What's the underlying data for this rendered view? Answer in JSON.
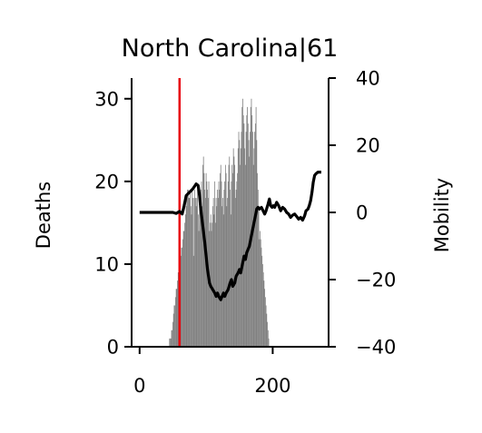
{
  "chart_data": {
    "type": "bar+line (dual axis)",
    "title": "North Carolina|61",
    "left_axis": {
      "label": "Deaths",
      "ylim": [
        0,
        32.5
      ],
      "ticks": [
        0,
        10,
        20,
        30
      ]
    },
    "right_axis": {
      "label": "Mobility",
      "ylim": [
        -40,
        40
      ],
      "ticks": [
        40,
        20,
        0,
        -20,
        -40
      ],
      "tick_labels": [
        "40",
        "20",
        "0",
        "−20",
        "−40"
      ]
    },
    "x_axis": {
      "xlim": [
        -12,
        284
      ],
      "ticks": [
        0,
        200
      ],
      "tick_labels": [
        "0",
        "200"
      ]
    },
    "vline": {
      "x": 60,
      "color": "#e8000b"
    },
    "colors": {
      "bars": "#808080",
      "line": "#000000",
      "axes": "#000000"
    },
    "deaths_series": {
      "name": "Deaths",
      "start_day": 42,
      "values": [
        0,
        0,
        0,
        1,
        1,
        1,
        2,
        2,
        3,
        4,
        5,
        5,
        6,
        7,
        7,
        8,
        9,
        9,
        10,
        11,
        11,
        12,
        12,
        13,
        14,
        14,
        15,
        16,
        17,
        18,
        19,
        19,
        18,
        18,
        19,
        17,
        16,
        19,
        18,
        11,
        18,
        19,
        18,
        17,
        18,
        19,
        16,
        14,
        17,
        18,
        19,
        20,
        17,
        22,
        23,
        21,
        19,
        18,
        21,
        20,
        19,
        18,
        20,
        14,
        15,
        16,
        14,
        15,
        17,
        18,
        16,
        20,
        15,
        18,
        17,
        19,
        18,
        20,
        19,
        21,
        22,
        20,
        17,
        18,
        16,
        19,
        20,
        22,
        21,
        17,
        18,
        20,
        22,
        23,
        19,
        16,
        20,
        22,
        21,
        24,
        23,
        22,
        18,
        19,
        20,
        21,
        24,
        26,
        25,
        22,
        24,
        26,
        29,
        30,
        28,
        27,
        24,
        22,
        26,
        28,
        29,
        27,
        25,
        23,
        26,
        29,
        30,
        28,
        26,
        22,
        24,
        26,
        27,
        29,
        25,
        21,
        19,
        17,
        13,
        14,
        13,
        12,
        11,
        10,
        9,
        8,
        7,
        6,
        5,
        4,
        3,
        2,
        1,
        0,
        0,
        0
      ]
    },
    "mobility_series": {
      "name": "Mobility",
      "points": [
        [
          0,
          0
        ],
        [
          10,
          0
        ],
        [
          20,
          0
        ],
        [
          30,
          0
        ],
        [
          40,
          0
        ],
        [
          50,
          0
        ],
        [
          55,
          -0.3
        ],
        [
          60,
          0.3
        ],
        [
          64,
          -0.5
        ],
        [
          67,
          2
        ],
        [
          70,
          5
        ],
        [
          75,
          6
        ],
        [
          80,
          7
        ],
        [
          85,
          8.5
        ],
        [
          88,
          8
        ],
        [
          90,
          5
        ],
        [
          92,
          1
        ],
        [
          95,
          -4
        ],
        [
          98,
          -9
        ],
        [
          100,
          -13
        ],
        [
          102,
          -17
        ],
        [
          105,
          -21
        ],
        [
          107,
          -22
        ],
        [
          110,
          -23
        ],
        [
          113,
          -24
        ],
        [
          115,
          -25
        ],
        [
          117,
          -24
        ],
        [
          119,
          -25
        ],
        [
          122,
          -26
        ],
        [
          124,
          -25
        ],
        [
          126,
          -24
        ],
        [
          128,
          -25
        ],
        [
          130,
          -24
        ],
        [
          133,
          -23
        ],
        [
          136,
          -21
        ],
        [
          138,
          -20
        ],
        [
          140,
          -22
        ],
        [
          143,
          -21
        ],
        [
          145,
          -19
        ],
        [
          148,
          -18
        ],
        [
          150,
          -17
        ],
        [
          152,
          -18
        ],
        [
          155,
          -15
        ],
        [
          157,
          -13
        ],
        [
          159,
          -14
        ],
        [
          161,
          -12
        ],
        [
          163,
          -11
        ],
        [
          165,
          -10
        ],
        [
          167,
          -8
        ],
        [
          170,
          -5
        ],
        [
          172,
          -3
        ],
        [
          174,
          -1
        ],
        [
          176,
          1
        ],
        [
          178,
          1.5
        ],
        [
          180,
          1
        ],
        [
          183,
          1.5
        ],
        [
          186,
          0.3
        ],
        [
          188,
          -0.5
        ],
        [
          190,
          0.5
        ],
        [
          193,
          2.5
        ],
        [
          195,
          4
        ],
        [
          197,
          2
        ],
        [
          199,
          1.5
        ],
        [
          201,
          2
        ],
        [
          203,
          1.5
        ],
        [
          206,
          3
        ],
        [
          209,
          2
        ],
        [
          212,
          0.5
        ],
        [
          215,
          1.5
        ],
        [
          218,
          1
        ],
        [
          221,
          0
        ],
        [
          224,
          -0.5
        ],
        [
          227,
          -1.5
        ],
        [
          230,
          -0.8
        ],
        [
          233,
          -0.5
        ],
        [
          236,
          -1.2
        ],
        [
          239,
          -2
        ],
        [
          242,
          -1.5
        ],
        [
          245,
          -2.3
        ],
        [
          248,
          -1
        ],
        [
          250,
          0.5
        ],
        [
          253,
          1
        ],
        [
          255,
          2
        ],
        [
          257,
          3.5
        ],
        [
          259,
          6
        ],
        [
          261,
          9
        ],
        [
          263,
          11
        ],
        [
          265,
          11.5
        ],
        [
          268,
          12
        ],
        [
          271,
          12
        ],
        [
          273,
          12
        ]
      ]
    }
  }
}
